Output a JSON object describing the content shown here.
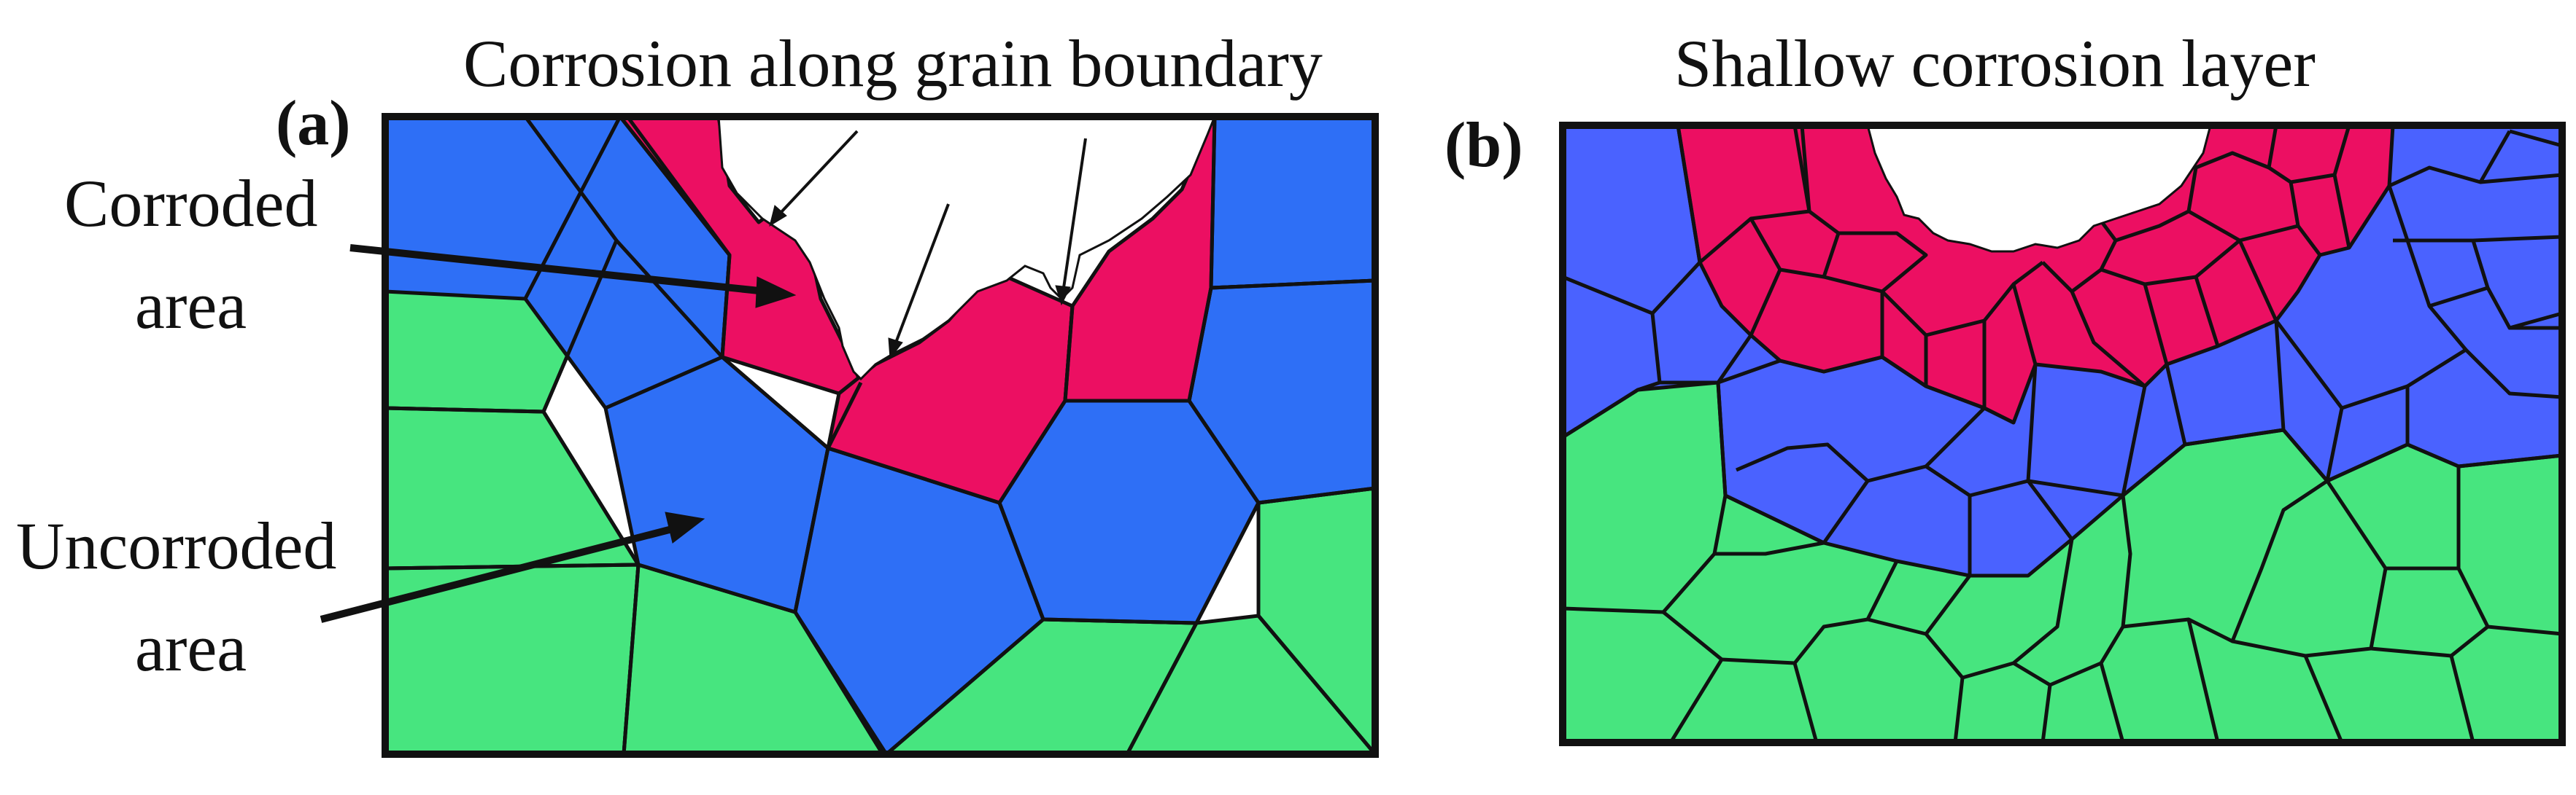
{
  "panel_a": {
    "letter": "(a)",
    "title": "Corrosion along grain boundary",
    "labels": {
      "corroded_line1": "Corroded",
      "corroded_line2": "area",
      "uncorroded_line1": "Uncorroded",
      "uncorroded_line2": "area"
    }
  },
  "panel_b": {
    "letter": "(b)",
    "title": "Shallow corrosion layer"
  },
  "colors": {
    "corroded": "#ec0f62",
    "uncorroded_a": "#2e6ff6",
    "uncorroded_b": "#4a62ff",
    "bulk": "#47e57f",
    "boundary": "#111111",
    "background": "#ffffff"
  }
}
